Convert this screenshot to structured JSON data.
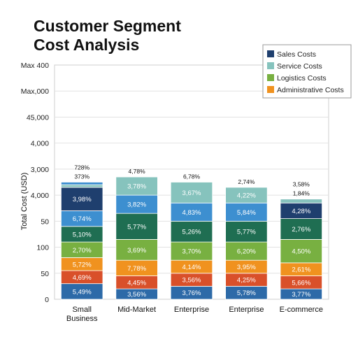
{
  "chart_data": {
    "type": "bar",
    "stacked": true,
    "title": [
      "Customer Segment",
      "Cost Analysis"
    ],
    "ylabel": "Total Cost (USD)",
    "xlabel": "",
    "ytick_labels": [
      "Max 400",
      "Max,000",
      "45,000",
      "4,000",
      "3,000",
      "4,000",
      "50",
      "100",
      "50",
      "0"
    ],
    "categories": [
      [
        "Small",
        "Business"
      ],
      [
        "Mid-Market"
      ],
      [
        "Enterprise"
      ],
      [
        "Enterprise"
      ],
      [
        "E-commerce"
      ]
    ],
    "grid": true,
    "legend_position": "top-right",
    "series": [
      {
        "name": "Sales Costs",
        "color": "#1f3f6e"
      },
      {
        "name": "Service Costs",
        "color": "#86c3bd"
      },
      {
        "name": "Logistics Costs",
        "color": "#78b041"
      },
      {
        "name": "Administrative Costs",
        "color": "#f0921f"
      }
    ],
    "bars": [
      {
        "top_labels": [
          "728%",
          "373%"
        ],
        "segments": [
          {
            "color": "#2d6aa8",
            "label": "5,49%",
            "value": 0.6
          },
          {
            "color": "#d9502a",
            "label": "4,69%",
            "value": 0.5
          },
          {
            "color": "#f0921f",
            "label": "5,72%",
            "value": 0.5
          },
          {
            "color": "#78b041",
            "label": "2,70%",
            "value": 0.6
          },
          {
            "color": "#1f6e52",
            "label": "5,10%",
            "value": 0.6
          },
          {
            "color": "#3d8fd0",
            "label": "6,74%",
            "value": 0.6
          },
          {
            "color": "#1f3f6e",
            "label": "3,98%",
            "value": 0.9
          },
          {
            "color": "#86c3bd",
            "label": "",
            "value": 0.1
          },
          {
            "color": "#3d8fd0",
            "label": "",
            "value": 0.1
          }
        ]
      },
      {
        "top_labels": [
          "4,78%"
        ],
        "segments": [
          {
            "color": "#2d6aa8",
            "label": "3,56%",
            "value": 0.4
          },
          {
            "color": "#d9502a",
            "label": "4,45%",
            "value": 0.5
          },
          {
            "color": "#f0921f",
            "label": "7,78%",
            "value": 0.6
          },
          {
            "color": "#78b041",
            "label": "3,69%",
            "value": 0.8
          },
          {
            "color": "#1f6e52",
            "label": "5,77%",
            "value": 1.0
          },
          {
            "color": "#3d8fd0",
            "label": "3,82%",
            "value": 0.7
          },
          {
            "color": "#86c3bd",
            "label": "3,78%",
            "value": 0.7
          }
        ]
      },
      {
        "top_labels": [
          "6,78%"
        ],
        "segments": [
          {
            "color": "#2d6aa8",
            "label": "3,76%",
            "value": 0.5
          },
          {
            "color": "#d9502a",
            "label": "3,56%",
            "value": 0.5
          },
          {
            "color": "#f0921f",
            "label": "4,14%",
            "value": 0.5
          },
          {
            "color": "#78b041",
            "label": "3,70%",
            "value": 0.7
          },
          {
            "color": "#1f6e52",
            "label": "5,26%",
            "value": 0.8
          },
          {
            "color": "#3d8fd0",
            "label": "4,83%",
            "value": 0.7
          },
          {
            "color": "#86c3bd",
            "label": "3,67%",
            "value": 0.8
          }
        ]
      },
      {
        "top_labels": [
          "2,74%"
        ],
        "segments": [
          {
            "color": "#2d6aa8",
            "label": "5,78%",
            "value": 0.5
          },
          {
            "color": "#d9502a",
            "label": "4,25%",
            "value": 0.5
          },
          {
            "color": "#f0921f",
            "label": "3,95%",
            "value": 0.5
          },
          {
            "color": "#78b041",
            "label": "6,20%",
            "value": 0.7
          },
          {
            "color": "#1f6e52",
            "label": "5,77%",
            "value": 0.8
          },
          {
            "color": "#3d8fd0",
            "label": "5,84%",
            "value": 0.7
          },
          {
            "color": "#86c3bd",
            "label": "4,22%",
            "value": 0.6
          }
        ]
      },
      {
        "top_labels": [
          "3,58%",
          "1,84%"
        ],
        "segments": [
          {
            "color": "#2d6aa8",
            "label": "3,77%",
            "value": 0.4
          },
          {
            "color": "#d9502a",
            "label": "5,66%",
            "value": 0.5
          },
          {
            "color": "#f0921f",
            "label": "2,61%",
            "value": 0.5
          },
          {
            "color": "#78b041",
            "label": "4,50%",
            "value": 0.9
          },
          {
            "color": "#1f6e52",
            "label": "2,76%",
            "value": 0.8
          },
          {
            "color": "#1f3f6e",
            "label": "4,28%",
            "value": 0.6
          },
          {
            "color": "#86c3bd",
            "label": "",
            "value": 0.15
          }
        ]
      }
    ]
  }
}
